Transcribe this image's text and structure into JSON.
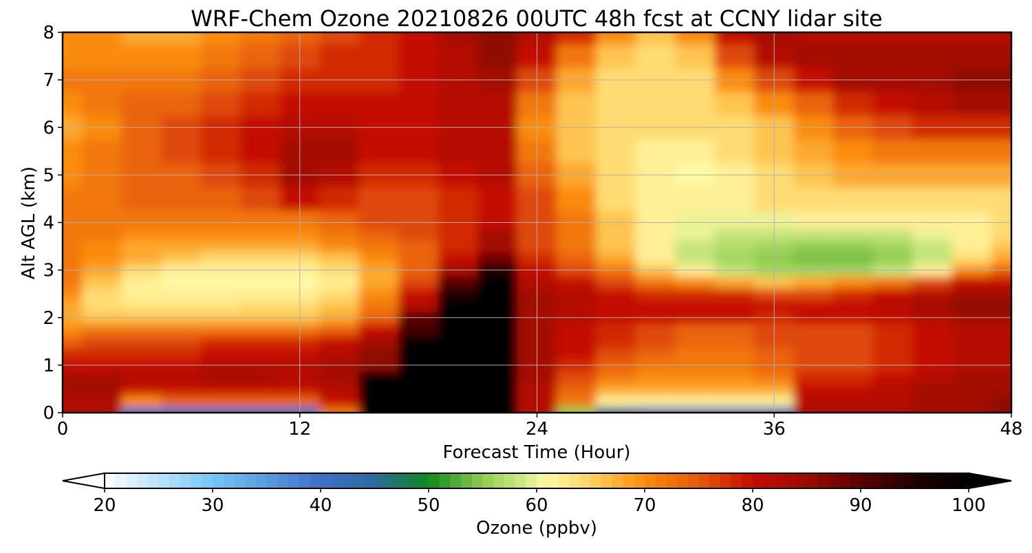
{
  "chart_data": {
    "type": "heatmap",
    "title": "WRF-Chem Ozone  20210826 00UTC 48h fcst at CCNY lidar site",
    "xlabel": "Forecast Time (Hour)",
    "ylabel": "Alt AGL (km)",
    "xlim": [
      0,
      48
    ],
    "ylim": [
      0,
      8
    ],
    "xticks": [
      0,
      12,
      24,
      36,
      48
    ],
    "yticks": [
      0,
      1,
      2,
      3,
      4,
      5,
      6,
      7,
      8
    ],
    "grid": true,
    "x": [
      0,
      2,
      4,
      6,
      8,
      10,
      12,
      14,
      16,
      18,
      20,
      22,
      24,
      26,
      28,
      30,
      32,
      34,
      36,
      38,
      40,
      42,
      44,
      46,
      48
    ],
    "y": [
      0,
      0.25,
      0.5,
      0.75,
      1,
      1.25,
      1.5,
      1.75,
      2,
      2.25,
      2.5,
      2.75,
      3,
      3.25,
      3.5,
      3.75,
      4,
      4.5,
      5,
      5.5,
      6,
      6.5,
      7,
      7.5,
      8
    ],
    "z": [
      [
        82,
        82,
        40,
        40,
        40,
        40,
        40,
        72,
        100,
        100,
        100,
        100,
        82,
        55,
        45,
        42,
        42,
        42,
        42,
        82,
        82,
        82,
        84,
        84,
        86
      ],
      [
        83,
        83,
        70,
        74,
        74,
        74,
        74,
        80,
        100,
        100,
        100,
        100,
        82,
        72,
        62,
        62,
        62,
        62,
        62,
        82,
        82,
        82,
        84,
        84,
        86
      ],
      [
        84,
        84,
        80,
        80,
        80,
        80,
        80,
        82,
        100,
        100,
        100,
        100,
        82,
        74,
        68,
        68,
        68,
        68,
        68,
        80,
        80,
        82,
        84,
        84,
        84
      ],
      [
        84,
        84,
        82,
        82,
        84,
        84,
        82,
        84,
        100,
        100,
        100,
        100,
        84,
        76,
        72,
        70,
        70,
        70,
        72,
        78,
        78,
        80,
        82,
        84,
        84
      ],
      [
        80,
        80,
        80,
        80,
        82,
        82,
        82,
        84,
        86,
        100,
        100,
        100,
        84,
        78,
        74,
        72,
        72,
        72,
        74,
        76,
        76,
        78,
        80,
        82,
        82
      ],
      [
        78,
        78,
        78,
        78,
        80,
        80,
        80,
        82,
        86,
        100,
        100,
        100,
        84,
        80,
        76,
        74,
        72,
        72,
        74,
        76,
        76,
        78,
        80,
        82,
        82
      ],
      [
        74,
        76,
        76,
        76,
        78,
        78,
        78,
        80,
        84,
        100,
        100,
        100,
        84,
        80,
        78,
        76,
        74,
        74,
        76,
        76,
        76,
        78,
        80,
        82,
        82
      ],
      [
        70,
        72,
        72,
        72,
        72,
        72,
        72,
        74,
        80,
        92,
        100,
        100,
        84,
        80,
        78,
        76,
        74,
        74,
        76,
        76,
        76,
        78,
        80,
        82,
        82
      ],
      [
        68,
        66,
        66,
        66,
        66,
        66,
        66,
        68,
        74,
        90,
        100,
        100,
        84,
        82,
        80,
        80,
        80,
        80,
        78,
        80,
        80,
        80,
        82,
        84,
        84
      ],
      [
        68,
        64,
        63,
        63,
        63,
        64,
        64,
        66,
        72,
        82,
        100,
        100,
        84,
        82,
        80,
        80,
        80,
        80,
        80,
        80,
        80,
        82,
        84,
        86,
        86
      ],
      [
        70,
        64,
        62,
        62,
        62,
        62,
        62,
        64,
        70,
        80,
        96,
        100,
        84,
        82,
        80,
        78,
        78,
        78,
        76,
        76,
        78,
        80,
        82,
        84,
        84
      ],
      [
        72,
        66,
        62,
        61,
        61,
        61,
        61,
        62,
        68,
        76,
        90,
        100,
        82,
        80,
        76,
        72,
        70,
        68,
        66,
        68,
        70,
        72,
        76,
        80,
        80
      ],
      [
        72,
        68,
        64,
        62,
        62,
        62,
        62,
        64,
        68,
        74,
        84,
        96,
        80,
        76,
        72,
        66,
        62,
        58,
        56,
        56,
        56,
        58,
        62,
        70,
        74
      ],
      [
        72,
        70,
        68,
        66,
        64,
        64,
        64,
        66,
        70,
        74,
        80,
        88,
        78,
        74,
        68,
        62,
        58,
        56,
        55,
        54,
        54,
        55,
        58,
        64,
        68
      ],
      [
        72,
        70,
        68,
        68,
        68,
        68,
        68,
        70,
        72,
        74,
        78,
        84,
        76,
        72,
        66,
        62,
        58,
        57,
        56,
        55,
        55,
        56,
        58,
        62,
        66
      ],
      [
        72,
        72,
        70,
        70,
        70,
        70,
        70,
        72,
        74,
        76,
        78,
        84,
        76,
        72,
        66,
        62,
        60,
        58,
        58,
        58,
        58,
        58,
        60,
        62,
        64
      ],
      [
        72,
        72,
        72,
        72,
        72,
        72,
        72,
        74,
        76,
        76,
        78,
        80,
        76,
        72,
        66,
        62,
        60,
        60,
        60,
        62,
        62,
        62,
        62,
        62,
        64
      ],
      [
        72,
        72,
        74,
        74,
        74,
        76,
        80,
        78,
        76,
        76,
        78,
        80,
        76,
        70,
        64,
        62,
        62,
        62,
        64,
        64,
        64,
        64,
        64,
        64,
        64
      ],
      [
        70,
        72,
        74,
        74,
        76,
        78,
        84,
        82,
        78,
        78,
        80,
        82,
        74,
        68,
        64,
        62,
        61,
        62,
        64,
        66,
        68,
        68,
        68,
        68,
        68
      ],
      [
        70,
        72,
        74,
        76,
        78,
        80,
        84,
        84,
        80,
        80,
        82,
        82,
        72,
        66,
        64,
        62,
        62,
        64,
        66,
        68,
        70,
        72,
        72,
        72,
        72
      ],
      [
        68,
        70,
        74,
        76,
        78,
        80,
        82,
        82,
        80,
        80,
        82,
        82,
        70,
        66,
        64,
        64,
        64,
        64,
        66,
        70,
        74,
        76,
        78,
        78,
        78
      ],
      [
        70,
        72,
        74,
        74,
        76,
        78,
        80,
        80,
        80,
        80,
        82,
        82,
        72,
        66,
        64,
        64,
        64,
        66,
        70,
        74,
        78,
        80,
        82,
        84,
        84
      ],
      [
        72,
        72,
        72,
        72,
        74,
        76,
        78,
        78,
        78,
        80,
        82,
        84,
        76,
        68,
        64,
        64,
        64,
        70,
        76,
        80,
        84,
        84,
        84,
        86,
        86
      ],
      [
        70,
        70,
        70,
        70,
        72,
        74,
        76,
        78,
        78,
        80,
        82,
        86,
        80,
        72,
        66,
        64,
        66,
        76,
        82,
        84,
        84,
        84,
        84,
        84,
        84
      ],
      [
        70,
        70,
        68,
        68,
        70,
        72,
        74,
        76,
        78,
        80,
        84,
        86,
        82,
        78,
        70,
        66,
        70,
        80,
        84,
        82,
        82,
        82,
        82,
        82,
        82
      ]
    ],
    "colorbar": {
      "label": "Ozone  (ppbv)",
      "min": 20,
      "max": 100,
      "ticks": [
        20,
        30,
        40,
        50,
        60,
        70,
        80,
        90,
        100
      ],
      "extend": "both",
      "stops": [
        {
          "v": 20,
          "c": "#ffffff"
        },
        {
          "v": 30,
          "c": "#74c6f5"
        },
        {
          "v": 40,
          "c": "#3f6fc8"
        },
        {
          "v": 45,
          "c": "#2c6aa0"
        },
        {
          "v": 50,
          "c": "#0a8a1a"
        },
        {
          "v": 55,
          "c": "#92cc50"
        },
        {
          "v": 59,
          "c": "#d6ec88"
        },
        {
          "v": 61,
          "c": "#fff9a6"
        },
        {
          "v": 65,
          "c": "#ffd262"
        },
        {
          "v": 70,
          "c": "#fa8c0a"
        },
        {
          "v": 75,
          "c": "#e65a0a"
        },
        {
          "v": 80,
          "c": "#c40c00"
        },
        {
          "v": 85,
          "c": "#9c0c00"
        },
        {
          "v": 90,
          "c": "#5a0000"
        },
        {
          "v": 95,
          "c": "#220000"
        },
        {
          "v": 100,
          "c": "#000000"
        }
      ]
    }
  }
}
